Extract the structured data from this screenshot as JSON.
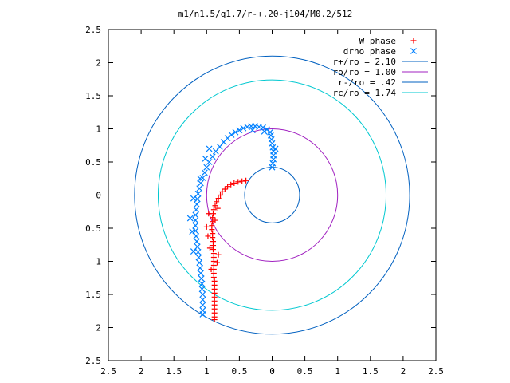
{
  "chart_data": {
    "type": "scatter",
    "title": "m1/n1.5/q1.7/r-+.20-j104/M0.2/512",
    "xlabel": "",
    "ylabel": "",
    "xlim": [
      -2.5,
      2.5
    ],
    "ylim": [
      -2.5,
      2.5
    ],
    "x_ticks": [
      -2.5,
      -2,
      -1.5,
      -1,
      -0.5,
      0,
      0.5,
      1,
      1.5,
      2,
      2.5
    ],
    "y_ticks": [
      -2.5,
      -2,
      -1.5,
      -1,
      -0.5,
      0,
      0.5,
      1,
      1.5,
      2,
      2.5
    ],
    "x_tick_labels": [
      "2.5",
      "2",
      "1.5",
      "1",
      "0.5",
      "0",
      "0.5",
      "1",
      "1.5",
      "2",
      "2.5"
    ],
    "y_tick_labels": [
      "2.5",
      "2",
      "1.5",
      "1",
      "0.5",
      "0",
      "0.5",
      "1",
      "1.5",
      "2",
      "2.5"
    ],
    "grid": false,
    "legend_position": "top-right",
    "series": [
      {
        "name": "W phase",
        "marker": "plus",
        "color": "#ff0000",
        "points": [
          [
            -0.4,
            0.22
          ],
          [
            -0.46,
            0.21
          ],
          [
            -0.52,
            0.2
          ],
          [
            -0.58,
            0.18
          ],
          [
            -0.63,
            0.16
          ],
          [
            -0.68,
            0.13
          ],
          [
            -0.72,
            0.09
          ],
          [
            -0.76,
            0.05
          ],
          [
            -0.79,
            0.0
          ],
          [
            -0.82,
            -0.05
          ],
          [
            -0.85,
            -0.1
          ],
          [
            -0.87,
            -0.16
          ],
          [
            -0.89,
            -0.22
          ],
          [
            -0.9,
            -0.28
          ],
          [
            -0.91,
            -0.34
          ],
          [
            -0.91,
            -0.4
          ],
          [
            -0.92,
            -0.46
          ],
          [
            -0.92,
            -0.52
          ],
          [
            -0.91,
            -0.58
          ],
          [
            -0.91,
            -0.64
          ],
          [
            -0.9,
            -0.7
          ],
          [
            -0.9,
            -0.76
          ],
          [
            -0.9,
            -0.82
          ],
          [
            -0.89,
            -0.88
          ],
          [
            -0.89,
            -0.94
          ],
          [
            -0.89,
            -1.0
          ],
          [
            -0.89,
            -1.06
          ],
          [
            -0.89,
            -1.12
          ],
          [
            -0.89,
            -1.18
          ],
          [
            -0.89,
            -1.24
          ],
          [
            -0.88,
            -1.3
          ],
          [
            -0.88,
            -1.36
          ],
          [
            -0.88,
            -1.42
          ],
          [
            -0.88,
            -1.48
          ],
          [
            -0.88,
            -1.54
          ],
          [
            -0.88,
            -1.6
          ],
          [
            -0.88,
            -1.66
          ],
          [
            -0.88,
            -1.72
          ],
          [
            -0.88,
            -1.78
          ],
          [
            -0.88,
            -1.84
          ],
          [
            -0.88,
            -1.88
          ],
          [
            -0.97,
            -0.28
          ],
          [
            -1.0,
            -0.48
          ],
          [
            -0.98,
            -0.62
          ],
          [
            -0.95,
            -0.8
          ],
          [
            -0.82,
            -0.9
          ],
          [
            -0.84,
            -1.02
          ],
          [
            -0.93,
            -1.12
          ],
          [
            -0.87,
            -0.38
          ],
          [
            -0.83,
            -0.2
          ]
        ]
      },
      {
        "name": "drho phase",
        "marker": "cross",
        "color": "#0080ff",
        "points": [
          [
            0.0,
            0.42
          ],
          [
            0.01,
            0.48
          ],
          [
            0.02,
            0.54
          ],
          [
            0.02,
            0.6
          ],
          [
            0.02,
            0.66
          ],
          [
            0.01,
            0.72
          ],
          [
            0.0,
            0.78
          ],
          [
            -0.01,
            0.84
          ],
          [
            -0.02,
            0.9
          ],
          [
            -0.03,
            0.95
          ],
          [
            -0.08,
            0.99
          ],
          [
            -0.14,
            1.02
          ],
          [
            -0.2,
            1.03
          ],
          [
            -0.26,
            1.04
          ],
          [
            -0.32,
            1.04
          ],
          [
            -0.38,
            1.03
          ],
          [
            -0.44,
            1.01
          ],
          [
            -0.5,
            0.98
          ],
          [
            -0.56,
            0.95
          ],
          [
            -0.62,
            0.91
          ],
          [
            -0.68,
            0.86
          ],
          [
            -0.74,
            0.8
          ],
          [
            -0.8,
            0.73
          ],
          [
            -0.86,
            0.66
          ],
          [
            -0.91,
            0.58
          ],
          [
            -0.96,
            0.5
          ],
          [
            -1.0,
            0.42
          ],
          [
            -1.03,
            0.34
          ],
          [
            -1.06,
            0.26
          ],
          [
            -1.09,
            0.18
          ],
          [
            -1.11,
            0.1
          ],
          [
            -1.13,
            0.02
          ],
          [
            -1.14,
            -0.06
          ],
          [
            -1.15,
            -0.14
          ],
          [
            -1.16,
            -0.22
          ],
          [
            -1.17,
            -0.3
          ],
          [
            -1.17,
            -0.38
          ],
          [
            -1.17,
            -0.46
          ],
          [
            -1.17,
            -0.54
          ],
          [
            -1.16,
            -0.62
          ],
          [
            -1.15,
            -0.7
          ],
          [
            -1.14,
            -0.78
          ],
          [
            -1.13,
            -0.86
          ],
          [
            -1.12,
            -0.94
          ],
          [
            -1.11,
            -1.02
          ],
          [
            -1.1,
            -1.1
          ],
          [
            -1.09,
            -1.18
          ],
          [
            -1.08,
            -1.26
          ],
          [
            -1.07,
            -1.34
          ],
          [
            -1.07,
            -1.42
          ],
          [
            -1.06,
            -1.5
          ],
          [
            -1.06,
            -1.58
          ],
          [
            -1.06,
            -1.66
          ],
          [
            -1.06,
            -1.74
          ],
          [
            -1.06,
            -1.8
          ],
          [
            -1.02,
            0.55
          ],
          [
            -0.96,
            0.7
          ],
          [
            -1.1,
            0.25
          ],
          [
            -1.2,
            -0.05
          ],
          [
            -1.25,
            -0.35
          ],
          [
            -1.22,
            -0.55
          ],
          [
            -1.2,
            -0.85
          ],
          [
            -0.12,
            0.96
          ],
          [
            -0.3,
            0.98
          ],
          [
            0.05,
            0.7
          ]
        ]
      }
    ],
    "circles": [
      {
        "name": "r+/ro = 2.10",
        "radius": 2.1,
        "color": "#0060c0"
      },
      {
        "name": "ro/ro = 1.00",
        "radius": 1.0,
        "color": "#a020c0"
      },
      {
        "name": "r-/ro = .42",
        "radius": 0.42,
        "color": "#0060c0"
      },
      {
        "name": "rc/ro = 1.74",
        "radius": 1.74,
        "color": "#00c8d0"
      }
    ]
  }
}
